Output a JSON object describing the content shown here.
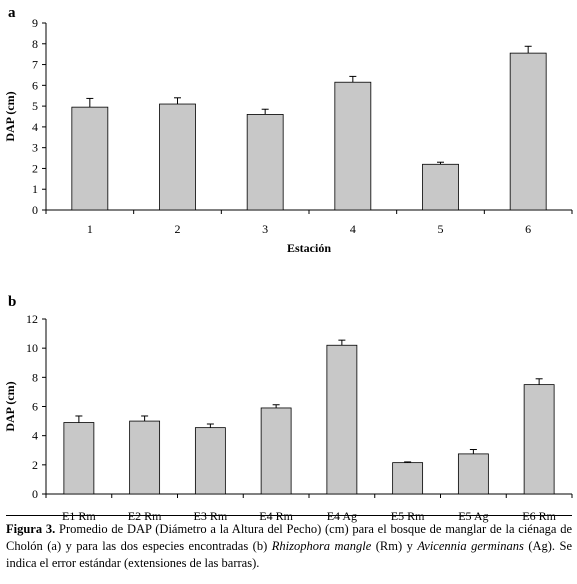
{
  "chart_data": [
    {
      "panel": "a",
      "type": "bar",
      "categories": [
        "1",
        "2",
        "3",
        "4",
        "5",
        "6"
      ],
      "values": [
        4.95,
        5.1,
        4.6,
        6.15,
        2.2,
        7.55
      ],
      "errors": [
        0.42,
        0.3,
        0.25,
        0.28,
        0.1,
        0.33
      ],
      "xlabel": "Estación",
      "ylabel": "DAP (cm)",
      "ylim": [
        0,
        9
      ],
      "yticks": [
        0,
        1,
        2,
        3,
        4,
        5,
        6,
        7,
        8,
        9
      ],
      "grid": false,
      "legend": "none"
    },
    {
      "panel": "b",
      "type": "bar",
      "categories": [
        "E1 Rm",
        "E2 Rm",
        "E3 Rm",
        "E4 Rm",
        "E4 Ag",
        "E5 Rm",
        "E5 Ag",
        "E6 Rm"
      ],
      "values": [
        4.9,
        5.0,
        4.55,
        5.9,
        10.2,
        2.15,
        2.75,
        7.5
      ],
      "errors": [
        0.45,
        0.35,
        0.25,
        0.22,
        0.35,
        0.05,
        0.3,
        0.4
      ],
      "xlabel": "",
      "ylabel": "DAP (cm)",
      "ylim": [
        0,
        12
      ],
      "yticks": [
        0,
        2,
        4,
        6,
        8,
        10,
        12
      ],
      "grid": false,
      "legend": "none"
    }
  ],
  "caption": {
    "label": "Figura 3.",
    "t1": " Promedio de DAP (Diámetro a la Altura del Pecho) (cm) para el bosque de manglar de la ciénaga de Cholón (a) y para las dos especies encontradas (b) ",
    "species1": "Rhizophora mangle",
    "t2": " (Rm) y ",
    "species2": "Avicennia germinans",
    "t3": " (Ag).  Se indica el error estándar (extensiones de las barras)."
  },
  "colors": {
    "bar_fill": "#c8c8c8",
    "bar_stroke": "#000000"
  }
}
